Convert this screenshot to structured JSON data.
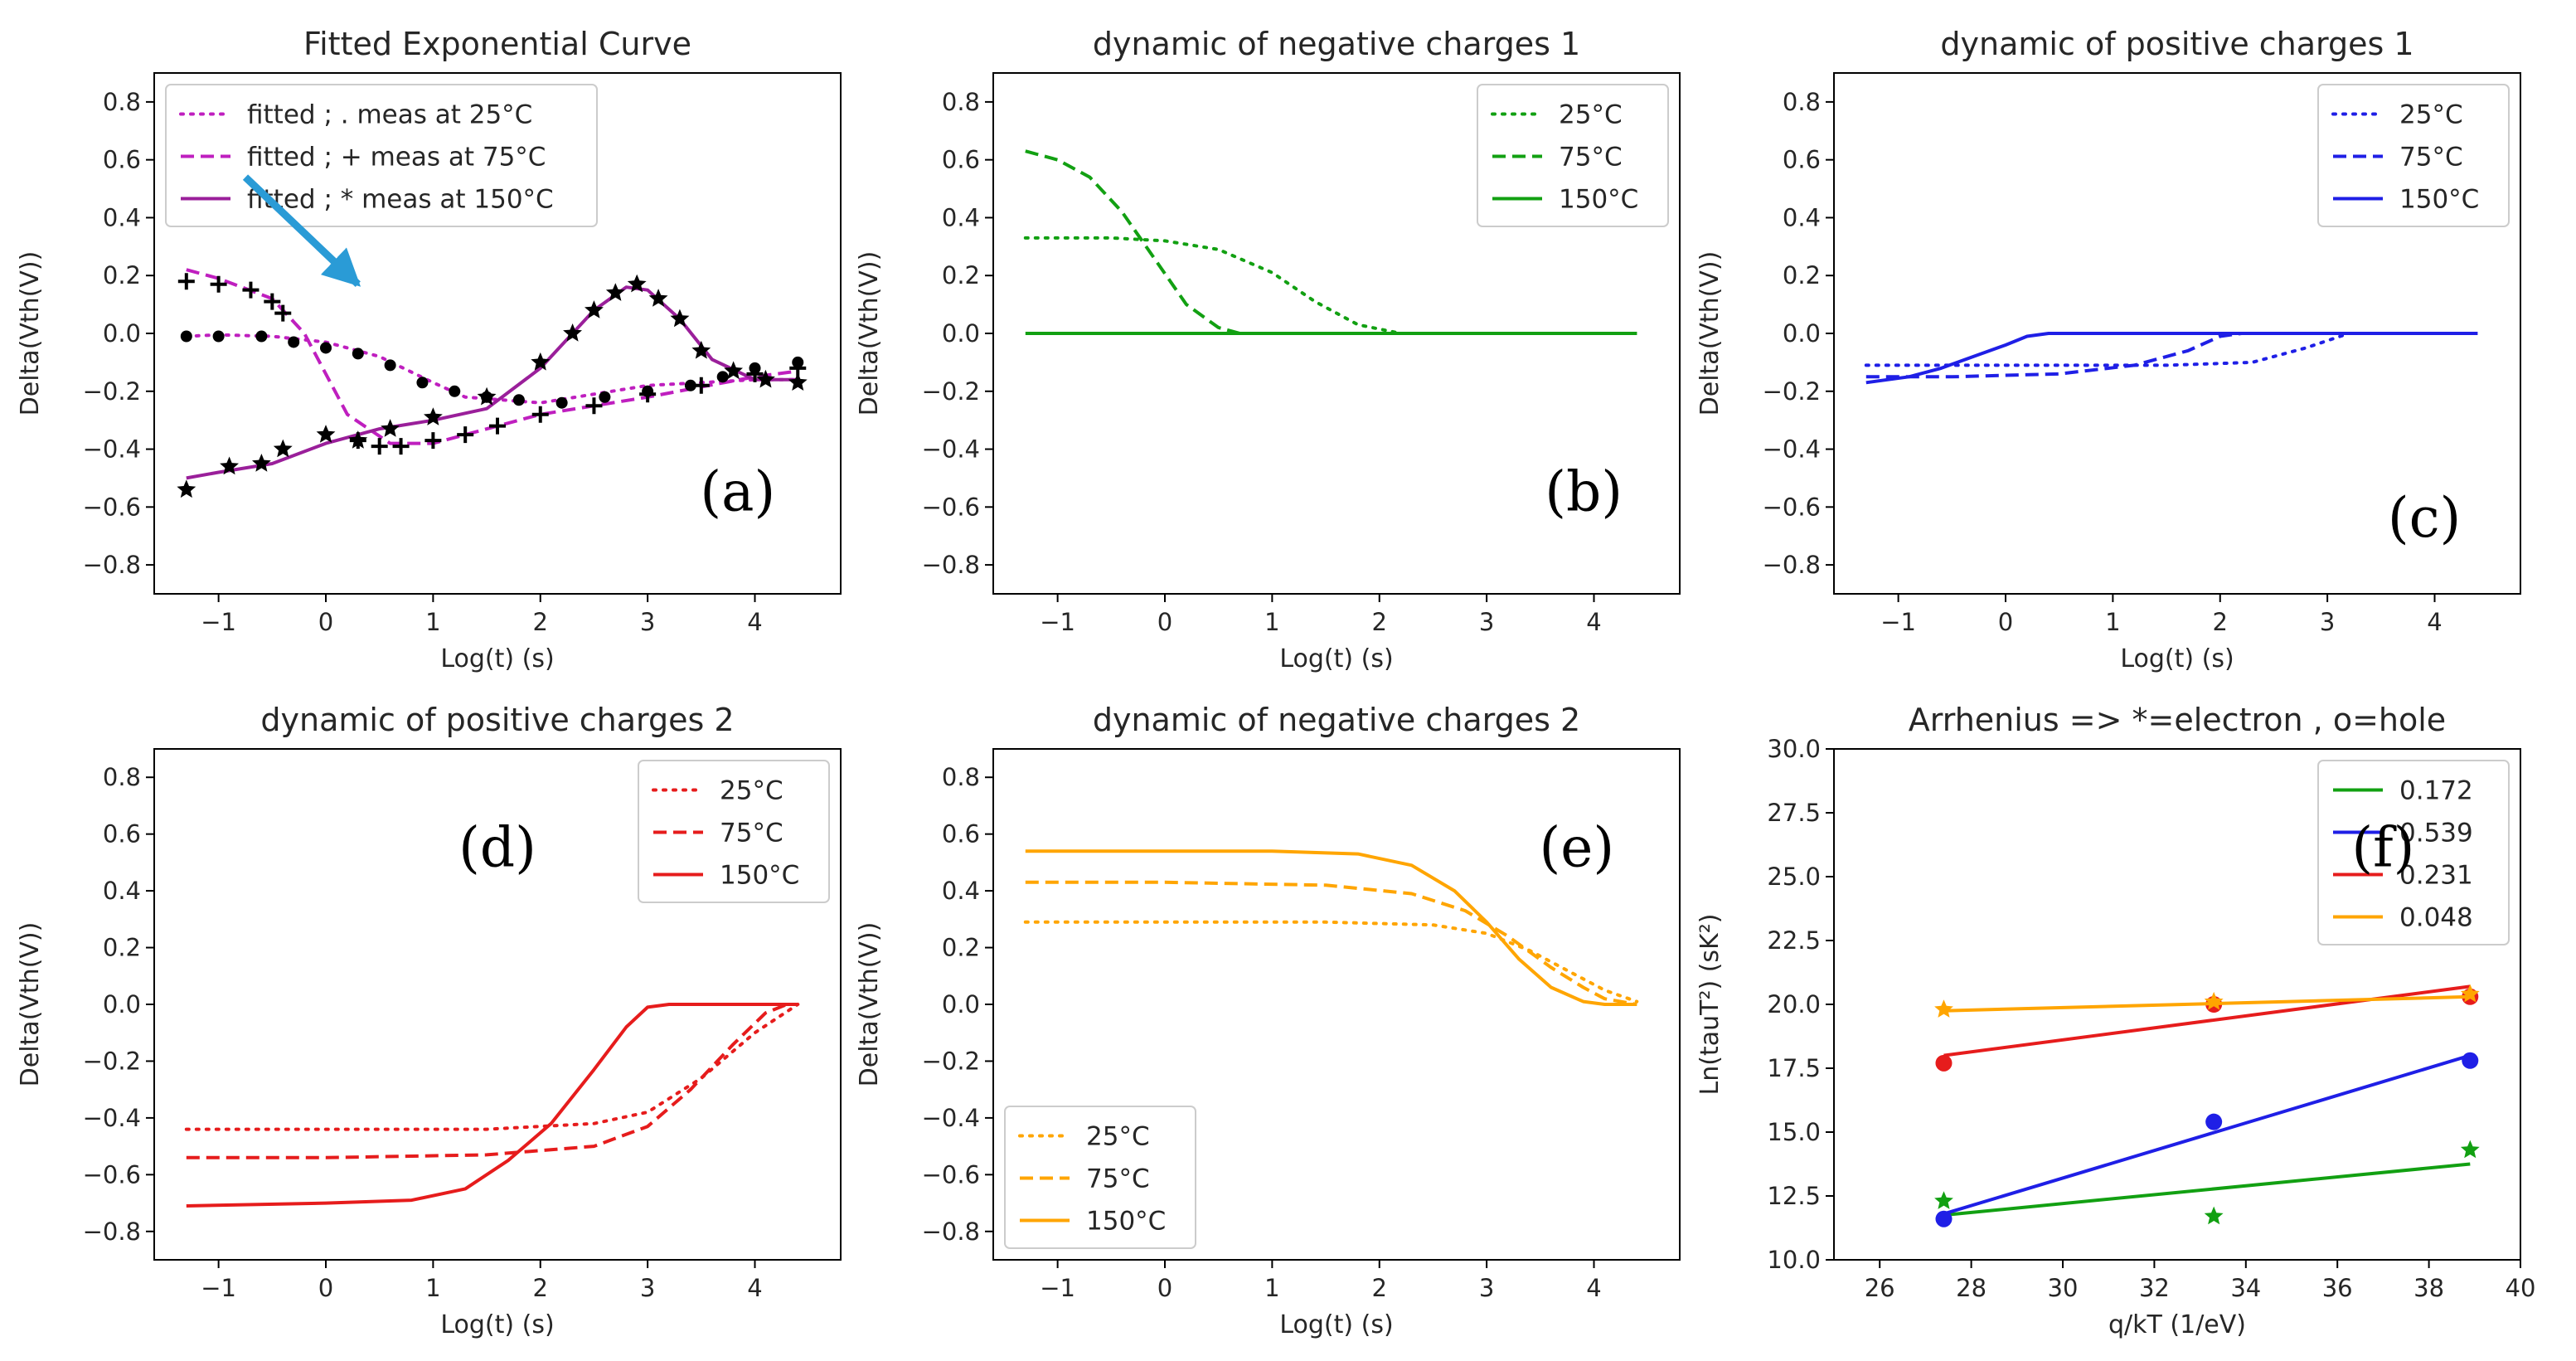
{
  "chart_data": [
    {
      "id": "a",
      "type": "line",
      "title": "Fitted Exponential Curve",
      "panel_label": "(a)",
      "xlabel": "Log(t) (s)",
      "ylabel": "Delta(Vth(V))",
      "xlim": [
        -1.6,
        4.8
      ],
      "ylim": [
        -0.9,
        0.9
      ],
      "xticks": [
        -1,
        0,
        1,
        2,
        3,
        4
      ],
      "yticks": [
        -0.8,
        -0.6,
        -0.4,
        -0.2,
        0.0,
        0.2,
        0.4,
        0.6,
        0.8
      ],
      "legend_position": "top-left",
      "series": [
        {
          "name": "fitted ; . meas at 25°C",
          "color": "#bf1fbf",
          "dash": "dotted",
          "x": [
            -1.3,
            -1.0,
            -0.5,
            0.0,
            0.5,
            1.0,
            1.3,
            2.0,
            3.0,
            4.0,
            4.4
          ],
          "y": [
            -0.01,
            -0.005,
            -0.01,
            -0.03,
            -0.08,
            -0.17,
            -0.22,
            -0.24,
            -0.18,
            -0.16,
            -0.16
          ]
        },
        {
          "name": "fitted ; + meas at 75°C",
          "color": "#bf1fbf",
          "dash": "dashed",
          "x": [
            -1.3,
            -1.0,
            -0.5,
            -0.2,
            0.2,
            0.6,
            1.0,
            2.0,
            3.0,
            4.0,
            4.4
          ],
          "y": [
            0.22,
            0.19,
            0.12,
            0.0,
            -0.28,
            -0.38,
            -0.38,
            -0.28,
            -0.22,
            -0.15,
            -0.13
          ]
        },
        {
          "name": "fitted ; * meas at 150°C",
          "color": "#9a1f9a",
          "dash": "solid",
          "x": [
            -1.3,
            -1.0,
            -0.5,
            0.0,
            0.5,
            1.0,
            1.5,
            2.0,
            2.5,
            2.8,
            3.0,
            3.3,
            3.6,
            4.0,
            4.4
          ],
          "y": [
            -0.5,
            -0.48,
            -0.45,
            -0.38,
            -0.33,
            -0.3,
            -0.26,
            -0.12,
            0.08,
            0.16,
            0.15,
            0.05,
            -0.09,
            -0.16,
            -0.16
          ]
        },
        {
          "name": "meas at 25°C",
          "marker": "dot",
          "color": "#000000",
          "x": [
            -1.3,
            -1.0,
            -0.6,
            -0.3,
            0.0,
            0.3,
            0.6,
            0.9,
            1.2,
            1.5,
            1.8,
            2.2,
            2.6,
            3.0,
            3.4,
            3.7,
            4.0,
            4.4
          ],
          "y": [
            -0.01,
            -0.01,
            -0.01,
            -0.03,
            -0.05,
            -0.07,
            -0.11,
            -0.17,
            -0.2,
            -0.22,
            -0.23,
            -0.24,
            -0.22,
            -0.2,
            -0.18,
            -0.15,
            -0.12,
            -0.1
          ]
        },
        {
          "name": "meas at 75°C",
          "marker": "plus",
          "color": "#000000",
          "x": [
            -1.3,
            -1.0,
            -0.7,
            -0.5,
            -0.4,
            0.3,
            0.5,
            0.7,
            1.0,
            1.3,
            1.6,
            2.0,
            2.5,
            3.0,
            3.5,
            4.0,
            4.4
          ],
          "y": [
            0.18,
            0.17,
            0.15,
            0.11,
            0.07,
            -0.37,
            -0.39,
            -0.39,
            -0.37,
            -0.35,
            -0.32,
            -0.28,
            -0.25,
            -0.21,
            -0.18,
            -0.14,
            -0.12
          ]
        },
        {
          "name": "meas at 150°C",
          "marker": "star",
          "color": "#000000",
          "x": [
            -1.3,
            -0.9,
            -0.6,
            -0.4,
            0.0,
            0.3,
            0.6,
            1.0,
            1.5,
            2.0,
            2.3,
            2.5,
            2.7,
            2.9,
            3.1,
            3.3,
            3.5,
            3.8,
            4.1,
            4.4
          ],
          "y": [
            -0.54,
            -0.46,
            -0.45,
            -0.4,
            -0.35,
            -0.37,
            -0.33,
            -0.29,
            -0.22,
            -0.1,
            0.0,
            0.08,
            0.14,
            0.17,
            0.12,
            0.05,
            -0.06,
            -0.13,
            -0.16,
            -0.17
          ]
        }
      ],
      "annotation": {
        "type": "arrow",
        "color": "#2a9bd6",
        "from": [
          -0.75,
          0.54
        ],
        "to": [
          0.3,
          0.17
        ]
      }
    },
    {
      "id": "b",
      "type": "line",
      "title": "dynamic of negative charges 1",
      "panel_label": "(b)",
      "xlabel": "Log(t) (s)",
      "ylabel": "Delta(Vth(V))",
      "xlim": [
        -1.6,
        4.8
      ],
      "ylim": [
        -0.9,
        0.9
      ],
      "xticks": [
        -1,
        0,
        1,
        2,
        3,
        4
      ],
      "yticks": [
        -0.8,
        -0.6,
        -0.4,
        -0.2,
        0.0,
        0.2,
        0.4,
        0.6,
        0.8
      ],
      "legend_position": "top-right",
      "series": [
        {
          "name": "25°C",
          "color": "#12a012",
          "dash": "dotted",
          "x": [
            -1.3,
            -0.5,
            0.0,
            0.5,
            1.0,
            1.4,
            1.8,
            2.2,
            3.0,
            4.4
          ],
          "y": [
            0.33,
            0.33,
            0.32,
            0.29,
            0.21,
            0.11,
            0.03,
            0.0,
            0.0,
            0.0
          ]
        },
        {
          "name": "75°C",
          "color": "#12a012",
          "dash": "dashed",
          "x": [
            -1.3,
            -1.0,
            -0.7,
            -0.4,
            -0.1,
            0.2,
            0.5,
            0.7,
            1.0,
            4.4
          ],
          "y": [
            0.63,
            0.6,
            0.54,
            0.42,
            0.26,
            0.1,
            0.02,
            0.0,
            0.0,
            0.0
          ]
        },
        {
          "name": "150°C",
          "color": "#12a012",
          "dash": "solid",
          "x": [
            -1.3,
            4.4
          ],
          "y": [
            0.0,
            0.0
          ]
        }
      ]
    },
    {
      "id": "c",
      "type": "line",
      "title": "dynamic of positive charges 1",
      "panel_label": "(c)",
      "xlabel": "Log(t) (s)",
      "ylabel": "Delta(Vth(V))",
      "xlim": [
        -1.6,
        4.8
      ],
      "ylim": [
        -0.9,
        0.9
      ],
      "xticks": [
        -1,
        0,
        1,
        2,
        3,
        4
      ],
      "yticks": [
        -0.8,
        -0.6,
        -0.4,
        -0.2,
        0.0,
        0.2,
        0.4,
        0.6,
        0.8
      ],
      "legend_position": "top-right",
      "series": [
        {
          "name": "25°C",
          "color": "#1f1fe6",
          "dash": "dotted",
          "x": [
            -1.3,
            0.0,
            1.5,
            2.3,
            2.8,
            3.2,
            4.4
          ],
          "y": [
            -0.11,
            -0.11,
            -0.11,
            -0.1,
            -0.05,
            0.0,
            0.0
          ]
        },
        {
          "name": "75°C",
          "color": "#1f1fe6",
          "dash": "dashed",
          "x": [
            -1.3,
            -0.5,
            0.5,
            1.2,
            1.7,
            2.0,
            2.2,
            4.4
          ],
          "y": [
            -0.15,
            -0.15,
            -0.14,
            -0.11,
            -0.06,
            -0.01,
            0.0,
            0.0
          ]
        },
        {
          "name": "150°C",
          "color": "#1f1fe6",
          "dash": "solid",
          "x": [
            -1.3,
            -0.9,
            -0.6,
            -0.3,
            0.0,
            0.2,
            0.4,
            4.4
          ],
          "y": [
            -0.17,
            -0.15,
            -0.12,
            -0.08,
            -0.04,
            -0.01,
            0.0,
            0.0
          ]
        }
      ]
    },
    {
      "id": "d",
      "type": "line",
      "title": "dynamic of positive charges 2",
      "panel_label": "(d)",
      "xlabel": "Log(t) (s)",
      "ylabel": "Delta(Vth(V))",
      "xlim": [
        -1.6,
        4.8
      ],
      "ylim": [
        -0.9,
        0.9
      ],
      "xticks": [
        -1,
        0,
        1,
        2,
        3,
        4
      ],
      "yticks": [
        -0.8,
        -0.6,
        -0.4,
        -0.2,
        0.0,
        0.2,
        0.4,
        0.6,
        0.8
      ],
      "legend_position": "top-right",
      "series": [
        {
          "name": "25°C",
          "color": "#e61c1c",
          "dash": "dotted",
          "x": [
            -1.3,
            0.0,
            1.5,
            2.5,
            3.0,
            3.5,
            4.0,
            4.4
          ],
          "y": [
            -0.44,
            -0.44,
            -0.44,
            -0.42,
            -0.38,
            -0.26,
            -0.1,
            0.0
          ]
        },
        {
          "name": "75°C",
          "color": "#e61c1c",
          "dash": "dashed",
          "x": [
            -1.3,
            0.0,
            1.5,
            2.5,
            3.0,
            3.4,
            3.8,
            4.1,
            4.3
          ],
          "y": [
            -0.54,
            -0.54,
            -0.53,
            -0.5,
            -0.43,
            -0.3,
            -0.14,
            -0.03,
            0.0
          ]
        },
        {
          "name": "150°C",
          "color": "#e61c1c",
          "dash": "solid",
          "x": [
            -1.3,
            0.0,
            0.8,
            1.3,
            1.7,
            2.1,
            2.5,
            2.8,
            3.0,
            3.2,
            4.4
          ],
          "y": [
            -0.71,
            -0.7,
            -0.69,
            -0.65,
            -0.55,
            -0.42,
            -0.23,
            -0.08,
            -0.01,
            0.0,
            0.0
          ]
        }
      ]
    },
    {
      "id": "e",
      "type": "line",
      "title": "dynamic of negative charges 2",
      "panel_label": "(e)",
      "xlabel": "Log(t) (s)",
      "ylabel": "Delta(Vth(V))",
      "xlim": [
        -1.6,
        4.8
      ],
      "ylim": [
        -0.9,
        0.9
      ],
      "xticks": [
        -1,
        0,
        1,
        2,
        3,
        4
      ],
      "yticks": [
        -0.8,
        -0.6,
        -0.4,
        -0.2,
        0.0,
        0.2,
        0.4,
        0.6,
        0.8
      ],
      "legend_position": "bottom-left",
      "series": [
        {
          "name": "25°C",
          "color": "#ffa500",
          "dash": "dotted",
          "x": [
            -1.3,
            0.0,
            1.5,
            2.5,
            3.0,
            3.4,
            3.8,
            4.1,
            4.4
          ],
          "y": [
            0.29,
            0.29,
            0.29,
            0.28,
            0.25,
            0.19,
            0.11,
            0.05,
            0.01
          ]
        },
        {
          "name": "75°C",
          "color": "#ffa500",
          "dash": "dashed",
          "x": [
            -1.3,
            0.0,
            1.5,
            2.3,
            2.8,
            3.2,
            3.6,
            3.9,
            4.1,
            4.4
          ],
          "y": [
            0.43,
            0.43,
            0.42,
            0.39,
            0.33,
            0.24,
            0.13,
            0.06,
            0.02,
            0.0
          ]
        },
        {
          "name": "150°C",
          "color": "#ffa500",
          "dash": "solid",
          "x": [
            -1.3,
            0.0,
            1.0,
            1.8,
            2.3,
            2.7,
            3.0,
            3.3,
            3.6,
            3.9,
            4.1,
            4.4
          ],
          "y": [
            0.54,
            0.54,
            0.54,
            0.53,
            0.49,
            0.4,
            0.29,
            0.16,
            0.06,
            0.01,
            0.0,
            0.0
          ]
        }
      ]
    },
    {
      "id": "f",
      "type": "scatter",
      "title": "Arrhenius => *=electron , o=hole",
      "panel_label": "(f)",
      "xlabel": "q/kT (1/eV)",
      "ylabel": "Ln(tauT²) (sK²)",
      "xlim": [
        25,
        40
      ],
      "ylim": [
        10,
        30
      ],
      "xticks": [
        26,
        28,
        30,
        32,
        34,
        36,
        38,
        40
      ],
      "xtick_labels": [
        "26",
        "28",
        "30",
        "32",
        "34",
        "36",
        "38",
        "40"
      ],
      "yticks": [
        10,
        12.5,
        15,
        17.5,
        20,
        22.5,
        25,
        27.5,
        30
      ],
      "ytick_labels": [
        "10.0",
        "12.5",
        "15.0",
        "17.5",
        "20.0",
        "22.5",
        "25.0",
        "27.5",
        "30.0"
      ],
      "legend_position": "top-right",
      "series": [
        {
          "name": "0.172",
          "color": "#12a012",
          "marker": "star",
          "points_x": [
            27.4,
            33.3,
            38.9
          ],
          "points_y": [
            12.3,
            11.7,
            14.3
          ],
          "fit_x": [
            27.4,
            38.9
          ],
          "fit_y": [
            11.75,
            13.75
          ]
        },
        {
          "name": "0.539",
          "color": "#1f1fe6",
          "marker": "circle",
          "points_x": [
            27.4,
            33.3,
            38.9
          ],
          "points_y": [
            11.6,
            15.4,
            17.8
          ],
          "fit_x": [
            27.4,
            38.9
          ],
          "fit_y": [
            11.8,
            18.0
          ]
        },
        {
          "name": "0.231",
          "color": "#e61c1c",
          "marker": "circle",
          "points_x": [
            27.4,
            33.3,
            38.9
          ],
          "points_y": [
            17.7,
            20.0,
            20.3
          ],
          "fit_x": [
            27.4,
            38.9
          ],
          "fit_y": [
            18.0,
            20.7
          ]
        },
        {
          "name": "0.048",
          "color": "#ffa500",
          "marker": "star",
          "points_x": [
            27.4,
            33.3,
            38.9
          ],
          "points_y": [
            19.8,
            20.1,
            20.4
          ],
          "fit_x": [
            27.4,
            38.9
          ],
          "fit_y": [
            19.75,
            20.3
          ]
        }
      ]
    }
  ]
}
